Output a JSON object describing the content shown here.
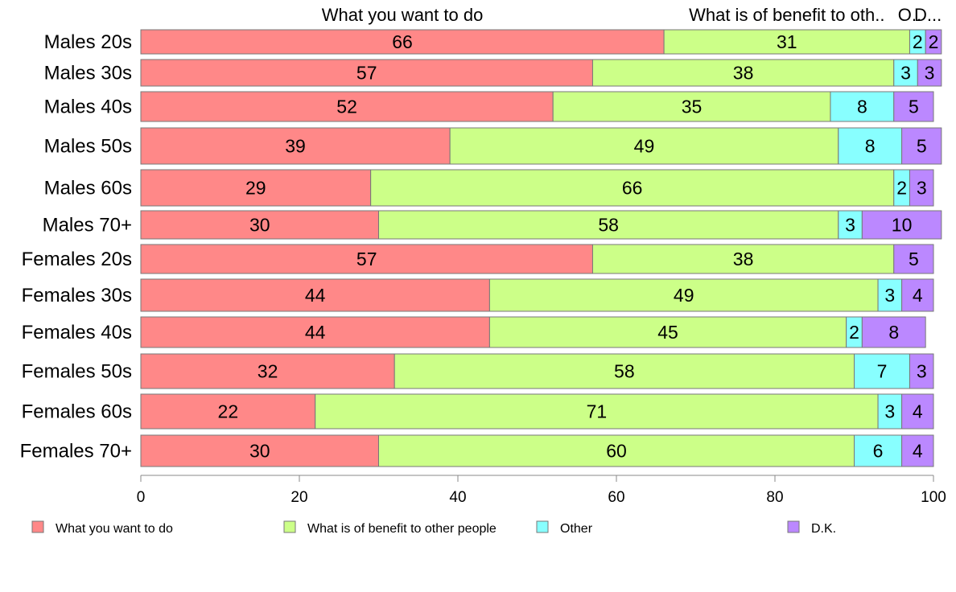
{
  "chart_data": {
    "type": "bar",
    "orientation": "horizontal",
    "stacked": true,
    "title": "",
    "xlabel": "",
    "ylabel": "",
    "xlim": [
      0,
      100
    ],
    "xticks": [
      0,
      20,
      40,
      60,
      80,
      100
    ],
    "grid": false,
    "legend_position": "bottom",
    "categories": [
      "Males 20s",
      "Males 30s",
      "Males 40s",
      "Males 50s",
      "Males 60s",
      "Males 70+",
      "Females 20s",
      "Females 30s",
      "Females 40s",
      "Females 50s",
      "Females 60s",
      "Females 70+"
    ],
    "series": [
      {
        "name": "What you want to do",
        "color": "#ff8888",
        "values": [
          66,
          57,
          52,
          39,
          29,
          30,
          57,
          44,
          44,
          32,
          22,
          30
        ]
      },
      {
        "name": "What is of benefit to other people",
        "color": "#ccff88",
        "values": [
          31,
          38,
          35,
          49,
          66,
          58,
          38,
          49,
          45,
          58,
          71,
          60
        ]
      },
      {
        "name": "Other",
        "color": "#88ffff",
        "values": [
          2,
          3,
          8,
          8,
          2,
          3,
          0,
          3,
          2,
          7,
          3,
          6
        ]
      },
      {
        "name": "D.K.",
        "color": "#bb88ff",
        "values": [
          2,
          3,
          5,
          5,
          3,
          10,
          5,
          4,
          8,
          3,
          4,
          4
        ]
      }
    ],
    "top_labels": [
      "What you want to do",
      "What is of benefit to oth..",
      "O..",
      "D..."
    ],
    "legend_labels": [
      "What you want to do",
      "What is of benefit to other people",
      "Other",
      "D.K."
    ]
  }
}
